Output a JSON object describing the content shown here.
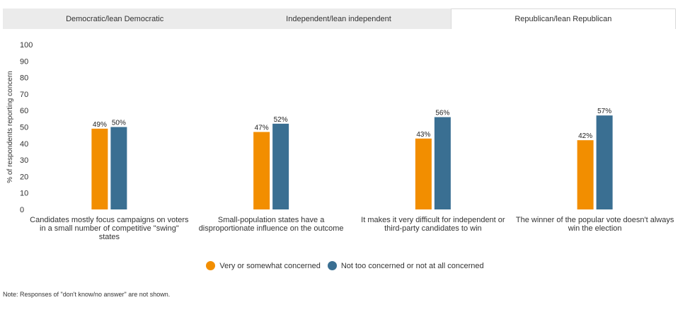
{
  "tabs": [
    {
      "label": "Democratic/lean Democratic",
      "active": false
    },
    {
      "label": "Independent/lean independent",
      "active": false
    },
    {
      "label": "Republican/lean Republican",
      "active": true
    }
  ],
  "colors": {
    "concerned": "#f28e00",
    "not_concerned": "#3a6f92",
    "axis_text": "#333333"
  },
  "chart_data": {
    "type": "bar",
    "ylabel": "% of respondents reporting concern",
    "ylim": [
      0,
      100
    ],
    "yticks": [
      0,
      10,
      20,
      30,
      40,
      50,
      60,
      70,
      80,
      90,
      100
    ],
    "grid": false,
    "legend_position": "bottom",
    "categories": [
      [
        "Candidates mostly focus campaigns on voters",
        "in a small number of competitive \"swing\"",
        "states"
      ],
      [
        "Small-population states have a",
        "disproportionate influence on the outcome"
      ],
      [
        "It makes it very difficult for independent or",
        "third-party candidates to win"
      ],
      [
        "The winner of the popular vote doesn't always",
        "win the election"
      ]
    ],
    "series": [
      {
        "name": "Very or somewhat concerned",
        "values": [
          49,
          47,
          43,
          42
        ],
        "labels": [
          "49%",
          "47%",
          "43%",
          "42%"
        ]
      },
      {
        "name": "Not too concerned or not at all concerned",
        "values": [
          50,
          52,
          56,
          57
        ],
        "labels": [
          "50%",
          "52%",
          "56%",
          "57%"
        ]
      }
    ]
  },
  "note": "Note: Responses of \"don't know/no answer\" are not shown."
}
